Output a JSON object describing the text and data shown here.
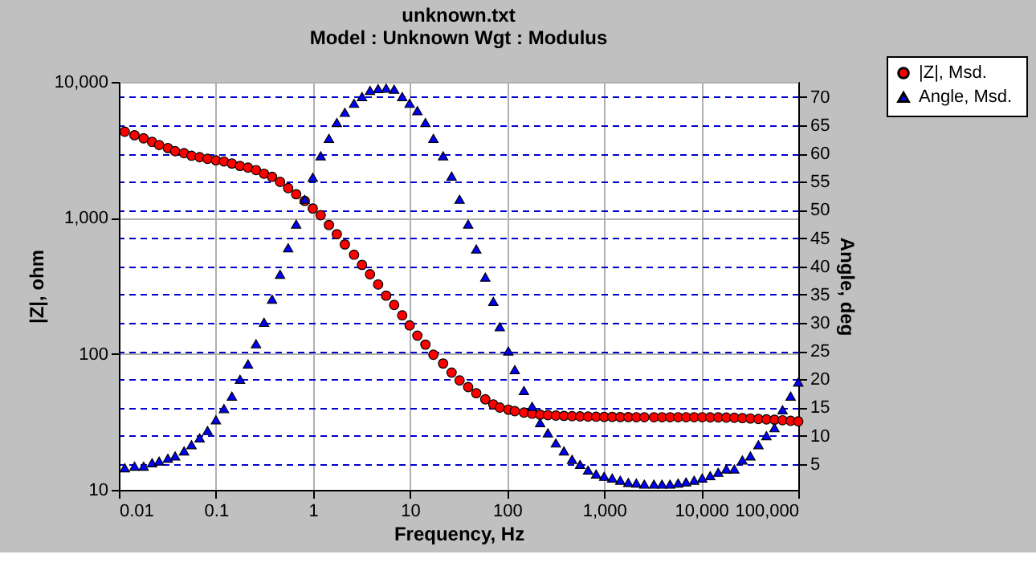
{
  "chart_data": {
    "type": "scatter",
    "title": "unknown.txt",
    "subtitle": "Model : Unknown     Wgt : Modulus",
    "xlabel": "Frequency,  Hz",
    "ylabel": "|Z|,  ohm",
    "y2label": "Angle,  deg",
    "log": "xy",
    "grid": true,
    "legend": "top right",
    "x": [
      0.0115,
      0.0145,
      0.018,
      0.022,
      0.026,
      0.032,
      0.038,
      0.047,
      0.056,
      0.068,
      0.082,
      0.1,
      0.121,
      0.146,
      0.177,
      0.214,
      0.259,
      0.313,
      0.379,
      0.458,
      0.555,
      0.671,
      0.822,
      0.995,
      1.2,
      1.46,
      1.76,
      2.13,
      2.65,
      3.2,
      3.87,
      4.69,
      5.67,
      6.86,
      8.3,
      9.9,
      11.9,
      14.4,
      17.4,
      21.9,
      26.8,
      32.4,
      39.7,
      48.1,
      59.6,
      72.1,
      84.1,
      103,
      120,
      149,
      181,
      219,
      263,
      318,
      385,
      467,
      565,
      683,
      826,
      1000,
      1210,
      1465,
      1772,
      2145,
      2595,
      3260,
      3945,
      4775,
      5780,
      6985,
      8455,
      10230,
      12380,
      14970,
      18120,
      21930,
      26540,
      32120,
      38850,
      46990,
      56870,
      68820,
      83370,
      100000
    ],
    "xlim": [
      0.01,
      100000
    ],
    "xticks": [
      0.01,
      0.1,
      1,
      10,
      100,
      {
        "value": 1000,
        "label": "1,000"
      },
      {
        "value": 10000,
        "label": "10,000"
      },
      {
        "value": 100000,
        "label": "100,000"
      }
    ],
    "ylim": [
      10,
      10000
    ],
    "yticks": [
      10,
      100,
      {
        "value": 1000,
        "label": "1,000"
      },
      {
        "value": 10000,
        "label": "10,000"
      }
    ],
    "y2lim": [
      0.4,
      72.7
    ],
    "y2ticks": [
      5,
      10,
      15,
      20,
      25,
      30,
      35,
      40,
      45,
      50,
      55,
      60,
      65,
      70
    ],
    "series": [
      {
        "name": "|Z|,  Msd.",
        "color": "#ff0000",
        "marker": "circle",
        "axis": "y",
        "values": [
          4305,
          4055,
          3846,
          3622,
          3436,
          3264,
          3097,
          2994,
          2865,
          2793,
          2718,
          2650,
          2600,
          2512,
          2410,
          2344,
          2246,
          2113,
          2005,
          1840,
          1656,
          1493,
          1334,
          1172,
          1047,
          887,
          759,
          638,
          536,
          451,
          385,
          324,
          268,
          229,
          192,
          162,
          136,
          117,
          98.6,
          85,
          72.8,
          63.8,
          57,
          51.4,
          46.3,
          42.5,
          40.3,
          38.9,
          37.9,
          37,
          36.3,
          35.7,
          35.4,
          35.2,
          35,
          34.8,
          34.7,
          34.6,
          34.5,
          34.4,
          34.4,
          34.3,
          34.3,
          34.2,
          34.2,
          34.2,
          34.2,
          34.2,
          34.2,
          34.2,
          34.2,
          34.2,
          34.1,
          34.1,
          34,
          33.9,
          33.7,
          33.5,
          33.2,
          33,
          32.8,
          32.5,
          32.2,
          31.9
        ]
      },
      {
        "name": "Angle,  Msd.",
        "color": "#0000ff",
        "marker": "triangle",
        "axis": "y2",
        "values": [
          4.3,
          4.6,
          4.6,
          5.2,
          5.5,
          6.0,
          6.4,
          7.3,
          8.4,
          9.6,
          10.9,
          12.8,
          14.8,
          17,
          20,
          22.7,
          26.3,
          30.1,
          34.2,
          38.6,
          43.3,
          47.5,
          51.9,
          55.8,
          59.6,
          62.7,
          65.5,
          67.3,
          68.9,
          70.1,
          71.2,
          71.5,
          71.6,
          71.4,
          70.1,
          68.9,
          67.6,
          65.5,
          62.7,
          59.6,
          56,
          51.9,
          47.5,
          43.1,
          38.1,
          33.8,
          29.3,
          25,
          21.7,
          18,
          15.2,
          12.3,
          10.5,
          8.7,
          7.3,
          5.8,
          4.9,
          3.9,
          3.2,
          2.8,
          2.5,
          2.1,
          1.7,
          1.6,
          1.4,
          1.4,
          1.4,
          1.4,
          1.6,
          1.8,
          2.1,
          2.5,
          2.9,
          3.5,
          4.1,
          4.1,
          5.7,
          6.4,
          8.4,
          10,
          11.4,
          14.6,
          17,
          19.5
        ]
      }
    ]
  }
}
